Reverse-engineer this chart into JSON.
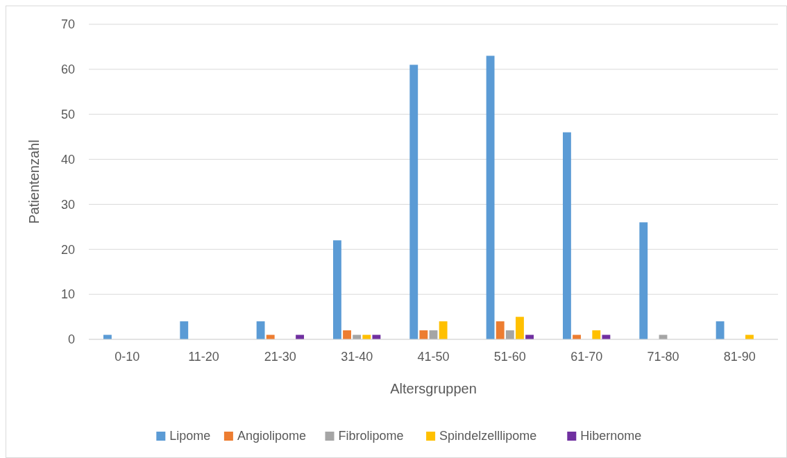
{
  "chart_data": {
    "type": "bar",
    "xlabel": "Altersgruppen",
    "ylabel": "Patientenzahl",
    "categories": [
      "0-10",
      "11-20",
      "21-30",
      "31-40",
      "41-50",
      "51-60",
      "61-70",
      "71-80",
      "81-90"
    ],
    "series": [
      {
        "name": "Lipome",
        "color": "#5b9bd5",
        "values": [
          1,
          4,
          4,
          22,
          61,
          63,
          46,
          26,
          4
        ]
      },
      {
        "name": "Angiolipome",
        "color": "#ed7d31",
        "values": [
          0,
          0,
          1,
          2,
          2,
          4,
          1,
          0,
          0
        ]
      },
      {
        "name": "Fibrolipome",
        "color": "#a5a5a5",
        "values": [
          0,
          0,
          0,
          1,
          2,
          2,
          0,
          1,
          0
        ]
      },
      {
        "name": "Spindelzelllipome",
        "color": "#ffc000",
        "values": [
          0,
          0,
          0,
          1,
          4,
          5,
          2,
          0,
          1
        ]
      },
      {
        "name": "Hibernome",
        "color": "#7030a0",
        "values": [
          0,
          0,
          1,
          1,
          0,
          1,
          1,
          0,
          0
        ]
      }
    ],
    "ylim": [
      0,
      70
    ],
    "yticks": [
      0,
      10,
      20,
      30,
      40,
      50,
      60,
      70
    ],
    "grid": "y",
    "legend": "bottom"
  }
}
